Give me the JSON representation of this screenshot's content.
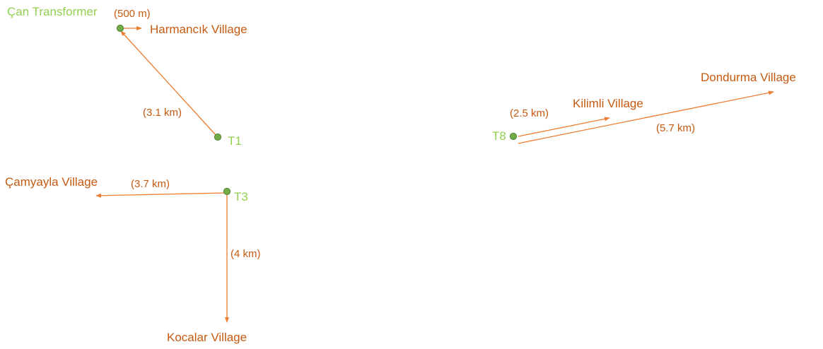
{
  "colors": {
    "node_fill": "#70ad47",
    "node_stroke": "#548235",
    "node_label": "#92d050",
    "connector": "#ed7d31",
    "text": "#c55a11"
  },
  "nodes": {
    "can": "Çan Transformer",
    "t1": "T1",
    "t3": "T3",
    "t8": "T8"
  },
  "villages": {
    "harmancik": "Harmancık Village",
    "camyayla": "Çamyayla Village",
    "kocalar": "Kocalar Village",
    "kilimli": "Kilimli Village",
    "dondurma": "Dondurma Village"
  },
  "distances": {
    "can_harmancik": "(500 m)",
    "t1_can": "(3.1 km)",
    "t3_camyayla": "(3.7 km)",
    "t3_kocalar": "(4 km)",
    "t8_kilimli": "(2.5 km)",
    "t8_dondurma": "(5.7 km)"
  }
}
